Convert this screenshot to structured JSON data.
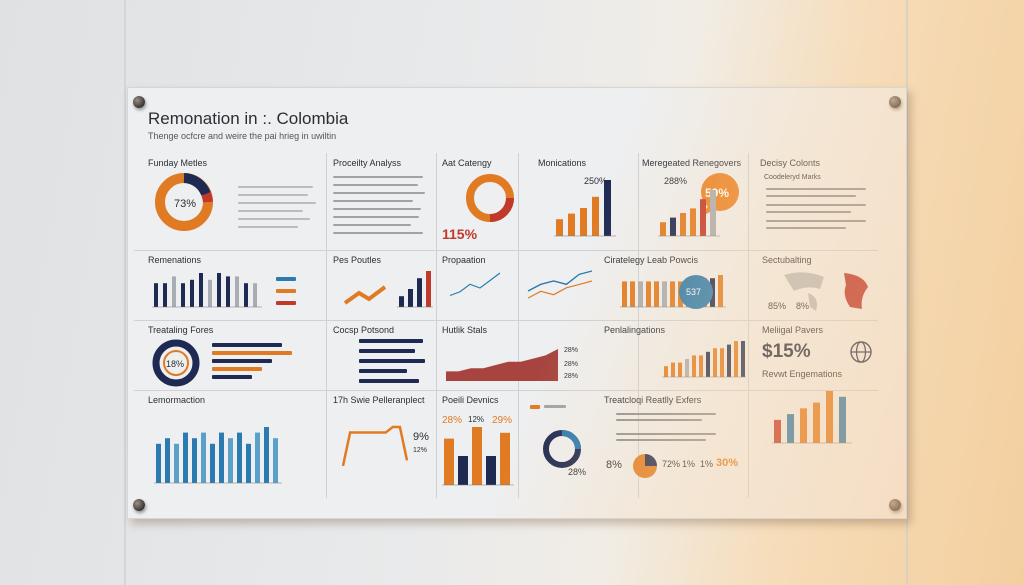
{
  "colors": {
    "navy": "#1e2a52",
    "orange": "#e07b23",
    "red": "#c0392b",
    "blue": "#2b7bb0",
    "gray": "#a9adb3"
  },
  "header": {
    "title": "Remonation in :. Colombia",
    "subtitle": "Thenge ocfcre and weire the pai hrieg in uwiltin"
  },
  "panels": {
    "p1": {
      "title": "Funday Metles",
      "center": "73%"
    },
    "p2": {
      "title": "Proceilty Analyss"
    },
    "p3": {
      "title": "Aat Catengy",
      "big": "115%"
    },
    "p4": {
      "title": "Monications",
      "label": "250%"
    },
    "p5": {
      "title": "Meregeated Renegovers",
      "label": "288%",
      "badge": "59%"
    },
    "p6": {
      "title": "Decisy Colonts",
      "sub": "Coodeleryd Marks"
    },
    "p7": {
      "title": "Remenations"
    },
    "p8": {
      "title": "Pes Poutles"
    },
    "p9": {
      "title": "Propaation"
    },
    "p10": {
      "title": "Ciratelegy Leab Powcis",
      "badge": "537"
    },
    "p11": {
      "title": "Sectubalting",
      "pct1": "85%",
      "pct2": "8%"
    },
    "p12": {
      "title": "Treataling Fores",
      "center": "18%"
    },
    "p13": {
      "title": "Cocsp Potsond"
    },
    "p14": {
      "title": "Hutlik Stals",
      "l1": "28%",
      "l2": "28%",
      "l3": "28%"
    },
    "p15": {
      "title": "Penlalingations"
    },
    "p16": {
      "title": "Meliigal Pavers",
      "big": "$15%",
      "sub": "Revwt Engemations"
    },
    "p17": {
      "title": "Lemormaction"
    },
    "p18": {
      "title": "17h Swie Pelleranplect",
      "l1": "9%",
      "l2": "12%"
    },
    "p19": {
      "title": "Poeili Devnics",
      "l1": "28%",
      "l2": "12%",
      "l3": "29%"
    },
    "p20": {
      "center": "28%"
    },
    "p21": {
      "title": "Treatcloqi Reatlly Exfers",
      "v1": "8%",
      "v2": "72%",
      "v3": "1%",
      "v4": "1%",
      "v5": "30%"
    }
  },
  "chart_data": [
    {
      "type": "pie",
      "title": "Funday Metles",
      "values": [
        73,
        27
      ]
    },
    {
      "type": "pie",
      "title": "Aat Catengy",
      "values": [
        75,
        25
      ]
    },
    {
      "type": "bar",
      "title": "Monications",
      "values": [
        3,
        4,
        5,
        7,
        10
      ]
    },
    {
      "type": "bar",
      "title": "Meregeated Renegovers",
      "values": [
        3,
        4,
        5,
        6,
        8,
        10
      ]
    },
    {
      "type": "bar",
      "title": "Remenations",
      "values": [
        7,
        7,
        9,
        7,
        8,
        10,
        8,
        10,
        9,
        9,
        7,
        7
      ]
    },
    {
      "type": "bar",
      "title": "Pes Poutles",
      "values": [
        3,
        5,
        8,
        10
      ]
    },
    {
      "type": "line",
      "title": "Propaation",
      "series": [
        {
          "values": [
            2,
            3,
            5,
            4,
            6,
            8
          ]
        },
        {
          "values": [
            3,
            5,
            6,
            5,
            8,
            9
          ]
        }
      ]
    },
    {
      "type": "bar",
      "title": "Ciratelegy Leab Powcis",
      "values": [
        8,
        8,
        8,
        8,
        8,
        8,
        8,
        8,
        8,
        9,
        9,
        9,
        10
      ]
    },
    {
      "type": "area",
      "title": "Hutlik Stals",
      "values": [
        3,
        3,
        4,
        4,
        5,
        6,
        6,
        7,
        8,
        10
      ]
    },
    {
      "type": "bar",
      "title": "Penlalingations",
      "values": [
        3,
        4,
        4,
        5,
        6,
        6,
        7,
        8,
        8,
        9,
        10,
        10
      ]
    },
    {
      "type": "bar",
      "title": "Revwt Engemations",
      "values": [
        4,
        5,
        6,
        7,
        9,
        8
      ]
    },
    {
      "type": "bar",
      "title": "Lemormaction",
      "values": [
        7,
        8,
        7,
        9,
        8,
        9,
        7,
        9,
        8,
        9,
        7,
        9,
        10,
        8
      ]
    },
    {
      "type": "line",
      "title": "17h Swie Pelleranplect",
      "values": [
        2,
        8,
        8,
        8,
        8,
        8,
        8,
        9,
        9,
        3
      ]
    },
    {
      "type": "bar",
      "title": "Poeili Devnics",
      "values": [
        8,
        5,
        10,
        5,
        9
      ]
    }
  ]
}
